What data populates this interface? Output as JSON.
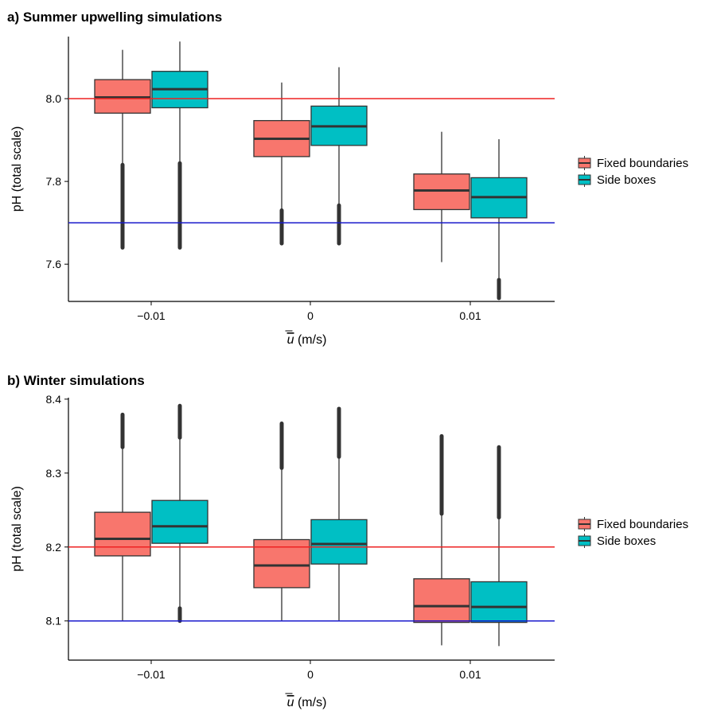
{
  "chart_data": [
    {
      "type": "box",
      "title": "a) Summer upwelling simulations",
      "ylabel": "pH (total scale)",
      "xlabel_symbol": "u",
      "xlabel_unit": " (m/s)",
      "categories": [
        "−0.01",
        "0",
        "0.01"
      ],
      "ylim": [
        7.51,
        8.15
      ],
      "yticks": [
        7.6,
        7.8,
        8.0
      ],
      "ytick_labels": [
        "7.6",
        "7.8",
        "8.0"
      ],
      "reference_lines": [
        {
          "value": 8.0,
          "color": "#ee2222"
        },
        {
          "value": 7.7,
          "color": "#1a1acc"
        }
      ],
      "series": [
        {
          "name": "Fixed boundaries",
          "color": "#f8766d",
          "boxes": [
            {
              "min": 7.64,
              "q1": 7.965,
              "median": 8.003,
              "q3": 8.046,
              "max": 8.118,
              "outliers_low": [
                7.64,
                7.84
              ]
            },
            {
              "min": 7.65,
              "q1": 7.86,
              "median": 7.903,
              "q3": 7.947,
              "max": 8.039,
              "outliers_low": [
                7.65,
                7.73
              ]
            },
            {
              "min": 7.605,
              "q1": 7.732,
              "median": 7.778,
              "q3": 7.818,
              "max": 7.92
            }
          ]
        },
        {
          "name": "Side boxes",
          "color": "#00bfc4",
          "boxes": [
            {
              "min": 7.64,
              "q1": 7.978,
              "median": 8.023,
              "q3": 8.066,
              "max": 8.138,
              "outliers_low": [
                7.64,
                7.844
              ]
            },
            {
              "min": 7.65,
              "q1": 7.887,
              "median": 7.933,
              "q3": 7.982,
              "max": 8.076,
              "outliers_low": [
                7.65,
                7.742
              ]
            },
            {
              "min": 7.562,
              "q1": 7.712,
              "median": 7.762,
              "q3": 7.809,
              "max": 7.902,
              "outliers_low": [
                7.518,
                7.562
              ]
            }
          ]
        }
      ]
    },
    {
      "type": "box",
      "title": "b) Winter simulations",
      "ylabel": "pH (total scale)",
      "xlabel_symbol": "u",
      "xlabel_unit": " (m/s)",
      "categories": [
        "−0.01",
        "0",
        "0.01"
      ],
      "ylim": [
        8.047,
        8.402
      ],
      "yticks": [
        8.1,
        8.2,
        8.3,
        8.4
      ],
      "ytick_labels": [
        "8.1",
        "8.2",
        "8.3",
        "8.4"
      ],
      "reference_lines": [
        {
          "value": 8.2,
          "color": "#ee2222"
        },
        {
          "value": 8.1,
          "color": "#1a1acc"
        }
      ],
      "series": [
        {
          "name": "Fixed boundaries",
          "color": "#f8766d",
          "boxes": [
            {
              "min": 8.1,
              "q1": 8.188,
              "median": 8.211,
              "q3": 8.247,
              "max": 8.335,
              "outliers_high": [
                8.335,
                8.379
              ]
            },
            {
              "min": 8.1,
              "q1": 8.145,
              "median": 8.175,
              "q3": 8.21,
              "max": 8.307,
              "outliers_high": [
                8.307,
                8.367
              ]
            },
            {
              "min": 8.067,
              "q1": 8.098,
              "median": 8.12,
              "q3": 8.157,
              "max": 8.245,
              "outliers_high": [
                8.245,
                8.35
              ]
            }
          ]
        },
        {
          "name": "Side boxes",
          "color": "#00bfc4",
          "boxes": [
            {
              "min": 8.117,
              "q1": 8.205,
              "median": 8.228,
              "q3": 8.263,
              "max": 8.348,
              "outliers_high": [
                8.348,
                8.391
              ],
              "outliers_low": [
                8.1,
                8.117
              ]
            },
            {
              "min": 8.1,
              "q1": 8.177,
              "median": 8.204,
              "q3": 8.237,
              "max": 8.322,
              "outliers_high": [
                8.322,
                8.387
              ]
            },
            {
              "min": 8.066,
              "q1": 8.098,
              "median": 8.119,
              "q3": 8.153,
              "max": 8.24,
              "outliers_high": [
                8.24,
                8.335
              ]
            }
          ]
        }
      ]
    }
  ],
  "legend": {
    "items": [
      {
        "label": "Fixed boundaries",
        "color": "#f8766d"
      },
      {
        "label": "Side boxes",
        "color": "#00bfc4"
      }
    ]
  }
}
